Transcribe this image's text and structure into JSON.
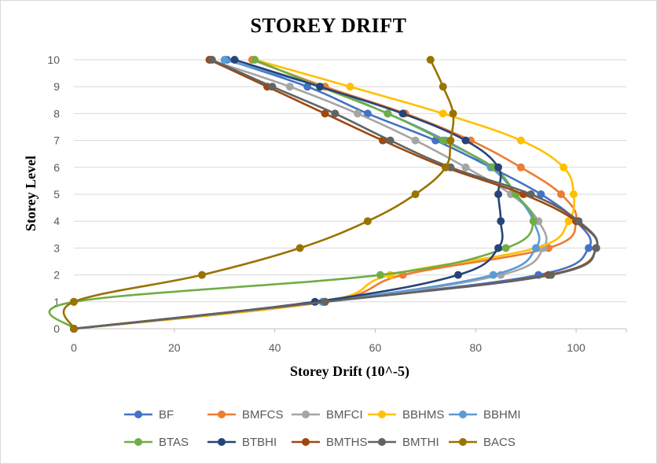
{
  "chart_data": {
    "type": "line",
    "title": "STOREY DRIFT",
    "xlabel": "Storey Drift  (10^-5)",
    "ylabel": "Storey Level",
    "xlim": [
      0,
      110
    ],
    "ylim": [
      0,
      10
    ],
    "xticks": [
      0,
      20,
      40,
      60,
      80,
      100
    ],
    "yticks": [
      0,
      1,
      2,
      3,
      4,
      5,
      6,
      7,
      8,
      9,
      10
    ],
    "grid": "horizontal",
    "legend_position": "bottom",
    "series": [
      {
        "name": "BF",
        "color": "#4472C4",
        "y": [
          0,
          1,
          2,
          3,
          4,
          5,
          6,
          7,
          8,
          9,
          10
        ],
        "x": [
          0,
          49.5,
          92.5,
          102.5,
          100,
          93,
          83,
          72,
          58.5,
          46.5,
          30.5
        ]
      },
      {
        "name": "BMFCS",
        "color": "#ED7D31",
        "y": [
          0,
          1,
          2,
          3,
          4,
          5,
          6,
          7,
          8,
          9,
          10
        ],
        "x": [
          0,
          50,
          65.5,
          94.5,
          100,
          97,
          89,
          79,
          66,
          50,
          35.5
        ]
      },
      {
        "name": "BMFCI",
        "color": "#A5A5A5",
        "y": [
          0,
          1,
          2,
          3,
          4,
          5,
          6,
          7,
          8,
          9,
          10
        ],
        "x": [
          0,
          50,
          85,
          93.5,
          92.5,
          87,
          78,
          68,
          56.5,
          43,
          27
        ]
      },
      {
        "name": "BBHMS",
        "color": "#FFC000",
        "y": [
          0,
          1,
          2,
          3,
          4,
          5,
          6,
          7,
          8,
          9,
          10
        ],
        "x": [
          0,
          49.5,
          63,
          92,
          98.5,
          99.5,
          97.5,
          89,
          73.5,
          55,
          36
        ]
      },
      {
        "name": "BBHMI",
        "color": "#5B9BD5",
        "y": [
          0,
          1,
          2,
          3,
          4,
          5,
          6,
          7,
          8,
          9,
          10
        ],
        "x": [
          0,
          49.5,
          83.5,
          92,
          91.5,
          88,
          83,
          74,
          62.5,
          49,
          30
        ]
      },
      {
        "name": "BTAS",
        "color": "#70AD47",
        "y": [
          0,
          1,
          2,
          3,
          4,
          5,
          6,
          7,
          8,
          9,
          10
        ],
        "x": [
          0,
          0,
          61,
          86,
          91.5,
          88,
          83.5,
          73.5,
          62.5,
          49,
          36
        ]
      },
      {
        "name": "BTBHI",
        "color": "#264478",
        "y": [
          0,
          1,
          2,
          3,
          4,
          5,
          6,
          7,
          8,
          9,
          10
        ],
        "x": [
          0,
          48,
          76.5,
          84.5,
          85,
          84.5,
          84.5,
          78,
          65.5,
          49,
          32
        ]
      },
      {
        "name": "BMTHS",
        "color": "#9E480E",
        "y": [
          0,
          1,
          2,
          3,
          4,
          5,
          6,
          7,
          8,
          9,
          10
        ],
        "x": [
          0,
          50,
          94.5,
          104,
          100,
          89.5,
          74,
          61.5,
          50,
          38.5,
          27
        ]
      },
      {
        "name": "BMTHI",
        "color": "#636363",
        "y": [
          0,
          1,
          2,
          3,
          4,
          5,
          6,
          7,
          8,
          9,
          10
        ],
        "x": [
          0,
          50,
          95,
          104,
          100.5,
          91,
          75,
          63,
          52,
          39.5,
          27.5
        ]
      },
      {
        "name": "BACS",
        "color": "#997300",
        "y": [
          0,
          1,
          2,
          3,
          4,
          5,
          6,
          7,
          8,
          9,
          10
        ],
        "x": [
          0,
          0,
          25.5,
          45,
          58.5,
          68,
          74,
          75,
          75.5,
          73.5,
          71
        ]
      }
    ]
  }
}
